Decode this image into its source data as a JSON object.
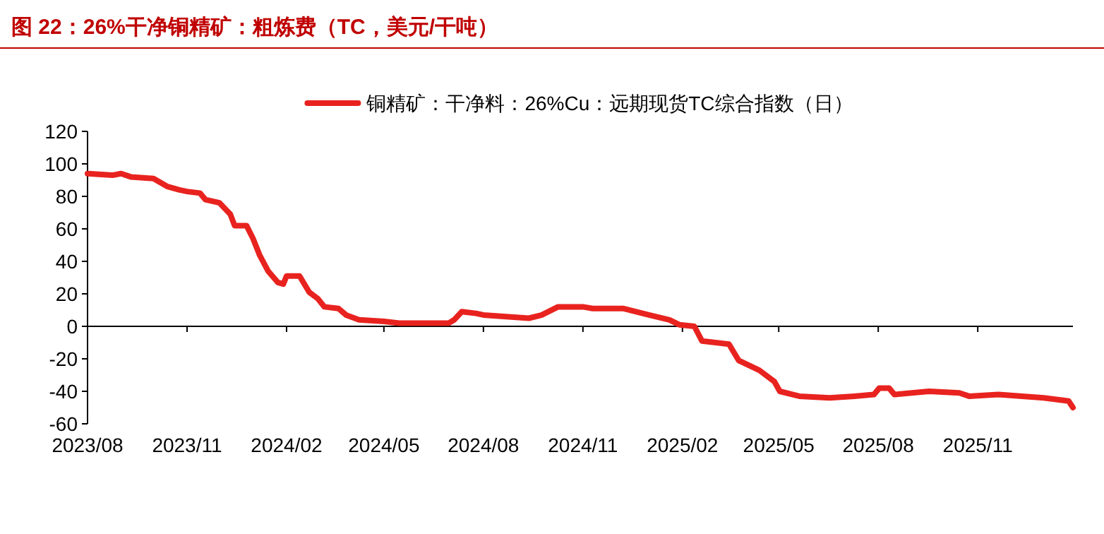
{
  "chart_data": {
    "type": "line",
    "title": "图 22：26%干净铜精矿：粗炼费（TC，美元/干吨）",
    "x": [
      "2023-08-01",
      "2023-08-24",
      "2023-09-01",
      "2023-09-10",
      "2023-10-01",
      "2023-10-14",
      "2023-10-25",
      "2023-11-01",
      "2023-11-13",
      "2023-11-18",
      "2023-12-01",
      "2023-12-11",
      "2023-12-15",
      "2023-12-26",
      "2024-01-01",
      "2024-01-07",
      "2024-01-15",
      "2024-01-24",
      "2024-01-29",
      "2024-02-01",
      "2024-02-13",
      "2024-02-22",
      "2024-03-01",
      "2024-03-07",
      "2024-03-20",
      "2024-03-27",
      "2024-04-08",
      "2024-05-01",
      "2024-05-15",
      "2024-06-30",
      "2024-07-05",
      "2024-07-12",
      "2024-07-25",
      "2024-08-01",
      "2024-08-22",
      "2024-09-12",
      "2024-09-24",
      "2024-10-09",
      "2024-11-01",
      "2024-11-10",
      "2024-12-08",
      "2025-01-01",
      "2025-01-20",
      "2025-01-29",
      "2025-02-12",
      "2025-02-19",
      "2025-03-16",
      "2025-03-25",
      "2025-04-13",
      "2025-04-27",
      "2025-05-02",
      "2025-05-20",
      "2025-06-17",
      "2025-07-10",
      "2025-07-28",
      "2025-08-02",
      "2025-08-11",
      "2025-08-16",
      "2025-09-17",
      "2025-10-15",
      "2025-10-24",
      "2025-11-20",
      "2026-01-01",
      "2026-01-24",
      "2026-01-28"
    ],
    "series": [
      {
        "name": "铜精矿：干净料：26%Cu：远期现货TC综合指数（日）",
        "color": "#e8231f",
        "values": [
          94,
          93,
          94,
          92,
          91,
          86,
          84,
          83,
          82,
          78,
          76,
          69,
          62,
          62,
          54,
          44,
          34,
          27,
          26,
          31,
          31,
          21,
          17,
          12,
          11,
          7,
          4,
          3,
          2,
          2,
          4,
          9,
          8,
          7,
          6,
          5,
          7,
          12,
          12,
          11,
          11,
          7,
          4,
          1,
          0,
          -9,
          -11,
          -21,
          -27,
          -34,
          -40,
          -43,
          -44,
          -43,
          -42,
          -38,
          -38,
          -42,
          -40,
          -41,
          -43,
          -42,
          -44,
          -46,
          -50
        ]
      }
    ],
    "xlim": [
      "2023-08-01",
      "2026-01-28"
    ],
    "xticks": [
      {
        "value": "2023-08",
        "label": "2023/08"
      },
      {
        "value": "2023-11",
        "label": "2023/11"
      },
      {
        "value": "2024-02",
        "label": "2024/02"
      },
      {
        "value": "2024-05",
        "label": "2024/05"
      },
      {
        "value": "2024-08",
        "label": "2024/08"
      },
      {
        "value": "2024-11",
        "label": "2024/11"
      },
      {
        "value": "2025-02",
        "label": "2025/02"
      },
      {
        "value": "2025-05",
        "label": "2025/05"
      },
      {
        "value": "2025-08",
        "label": "2025/08"
      },
      {
        "value": "2025-11",
        "label": "2025/11"
      }
    ],
    "ylim": [
      -60,
      120
    ],
    "yticks": [
      -60,
      -40,
      -20,
      0,
      20,
      40,
      60,
      80,
      100,
      120
    ],
    "legend": "top",
    "marker": "none",
    "line_style": "solid"
  }
}
